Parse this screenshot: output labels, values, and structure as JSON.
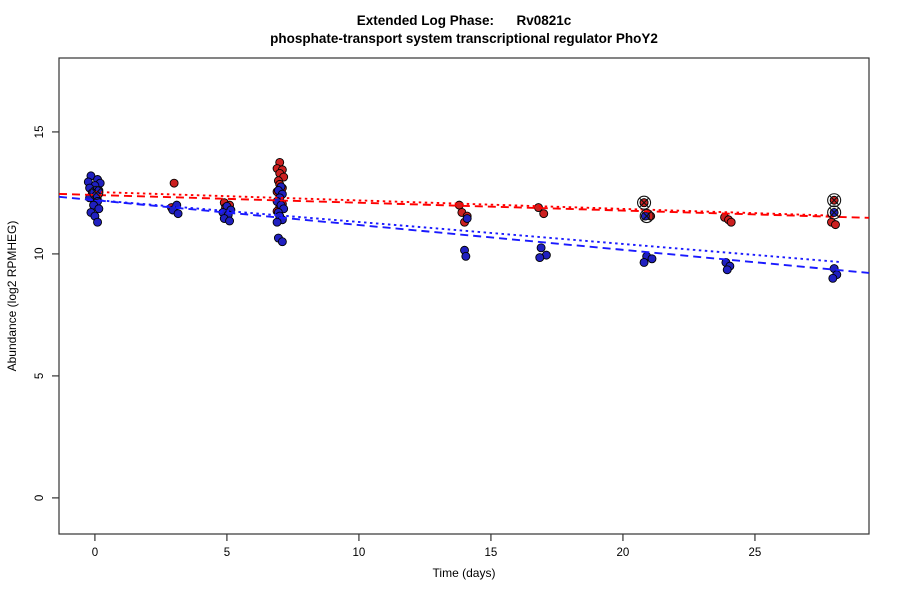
{
  "title": {
    "line1": "Extended Log Phase:      Rv0821c",
    "line2": "phosphate-transport system transcriptional regulator PhoY2"
  },
  "chart_data": {
    "type": "scatter",
    "xlabel": "Time  (days)",
    "ylabel": "Abundance  (log2 RPMHEG)",
    "x_ticks": [
      0,
      5,
      10,
      15,
      20,
      25
    ],
    "y_ticks": [
      0,
      5,
      10,
      15
    ],
    "xlim": [
      -1.36,
      29.32
    ],
    "ylim": [
      -1.48,
      18.03
    ],
    "grid": false,
    "legend": "none",
    "colors": {
      "red_points": "#CC2020",
      "blue_points": "#2020C0",
      "red_line": "#FF0000",
      "blue_line": "#1A1AFF",
      "marker_outline": "#000000"
    },
    "series": [
      {
        "name": "condition-red",
        "color": "#CC2020",
        "points": [
          [
            -0.05,
            12.45
          ],
          [
            0.1,
            12.2
          ],
          [
            3.0,
            12.9
          ],
          [
            2.9,
            11.9
          ],
          [
            4.9,
            12.1
          ],
          [
            5.1,
            12.0
          ],
          [
            4.95,
            11.9
          ],
          [
            7.0,
            13.75
          ],
          [
            6.9,
            13.5
          ],
          [
            7.1,
            13.45
          ],
          [
            7.0,
            13.3
          ],
          [
            7.15,
            13.15
          ],
          [
            6.95,
            13.0
          ],
          [
            7.0,
            12.85
          ],
          [
            7.1,
            12.7
          ],
          [
            6.9,
            12.55
          ],
          [
            7.05,
            12.4
          ],
          [
            6.95,
            12.2
          ],
          [
            7.1,
            12.05
          ],
          [
            7.0,
            11.9
          ],
          [
            6.9,
            11.75
          ],
          [
            13.8,
            12.0
          ],
          [
            13.9,
            11.7
          ],
          [
            14.1,
            11.55
          ],
          [
            14.0,
            11.3
          ],
          [
            16.8,
            11.9
          ],
          [
            17.0,
            11.65
          ],
          [
            20.8,
            12.1
          ],
          [
            21.05,
            11.55
          ],
          [
            23.85,
            11.5
          ],
          [
            24.0,
            11.4
          ],
          [
            24.1,
            11.3
          ],
          [
            27.9,
            11.3
          ],
          [
            28.05,
            11.2
          ]
        ]
      },
      {
        "name": "condition-blue",
        "color": "#2020C0",
        "points": [
          [
            -0.15,
            13.2
          ],
          [
            0.1,
            13.05
          ],
          [
            -0.25,
            12.95
          ],
          [
            0.2,
            12.9
          ],
          [
            0.0,
            12.8
          ],
          [
            -0.2,
            12.7
          ],
          [
            0.15,
            12.6
          ],
          [
            -0.1,
            12.5
          ],
          [
            0.05,
            12.4
          ],
          [
            -0.2,
            12.3
          ],
          [
            0.1,
            12.15
          ],
          [
            -0.05,
            12.0
          ],
          [
            0.15,
            11.85
          ],
          [
            -0.15,
            11.7
          ],
          [
            0.0,
            11.55
          ],
          [
            0.1,
            11.3
          ],
          [
            3.1,
            12.0
          ],
          [
            2.95,
            11.8
          ],
          [
            3.15,
            11.65
          ],
          [
            5.0,
            11.95
          ],
          [
            5.15,
            11.8
          ],
          [
            4.85,
            11.7
          ],
          [
            5.05,
            11.6
          ],
          [
            4.9,
            11.45
          ],
          [
            5.1,
            11.35
          ],
          [
            7.05,
            12.75
          ],
          [
            6.95,
            12.6
          ],
          [
            7.1,
            12.45
          ],
          [
            7.0,
            12.3
          ],
          [
            6.9,
            12.15
          ],
          [
            7.05,
            12.0
          ],
          [
            7.15,
            11.85
          ],
          [
            6.95,
            11.7
          ],
          [
            7.0,
            11.55
          ],
          [
            7.1,
            11.4
          ],
          [
            6.9,
            11.3
          ],
          [
            6.95,
            10.65
          ],
          [
            7.1,
            10.5
          ],
          [
            14.1,
            11.45
          ],
          [
            14.0,
            10.15
          ],
          [
            14.05,
            9.9
          ],
          [
            16.9,
            10.25
          ],
          [
            17.1,
            9.95
          ],
          [
            16.85,
            9.85
          ],
          [
            20.85,
            11.55
          ],
          [
            20.9,
            9.9
          ],
          [
            21.1,
            9.8
          ],
          [
            20.8,
            9.65
          ],
          [
            23.9,
            9.65
          ],
          [
            24.05,
            9.5
          ],
          [
            23.95,
            9.35
          ],
          [
            28.0,
            9.4
          ],
          [
            28.1,
            9.15
          ],
          [
            27.95,
            9.0
          ]
        ]
      }
    ],
    "trend_lines": [
      {
        "name": "red-dashed-fit",
        "color": "#FF0000",
        "dash": [
          8,
          5
        ],
        "x1": -1.36,
        "y1": 12.46,
        "x2": 29.32,
        "y2": 11.48
      },
      {
        "name": "red-dotted-fit",
        "color": "#FF0000",
        "dash": [
          2.5,
          3.5
        ],
        "x1": 0.0,
        "y1": 12.54,
        "x2": 28.2,
        "y2": 11.56
      },
      {
        "name": "blue-dashed-fit",
        "color": "#1A1AFF",
        "dash": [
          8,
          5
        ],
        "x1": -1.36,
        "y1": 12.34,
        "x2": 29.32,
        "y2": 9.22
      },
      {
        "name": "blue-dotted-fit",
        "color": "#1A1AFF",
        "dash": [
          2.5,
          3.5
        ],
        "x1": 0.0,
        "y1": 12.21,
        "x2": 28.2,
        "y2": 9.67
      }
    ],
    "flagged_points": [
      {
        "x": 0.05,
        "y": 12.5,
        "fill": "none"
      },
      {
        "x": 20.8,
        "y": 12.1,
        "fill": "#CC2020"
      },
      {
        "x": 20.9,
        "y": 11.55,
        "fill": "none"
      },
      {
        "x": 28.0,
        "y": 12.2,
        "fill": "#CC2020"
      },
      {
        "x": 28.0,
        "y": 11.7,
        "fill": "#2020C0"
      }
    ]
  }
}
